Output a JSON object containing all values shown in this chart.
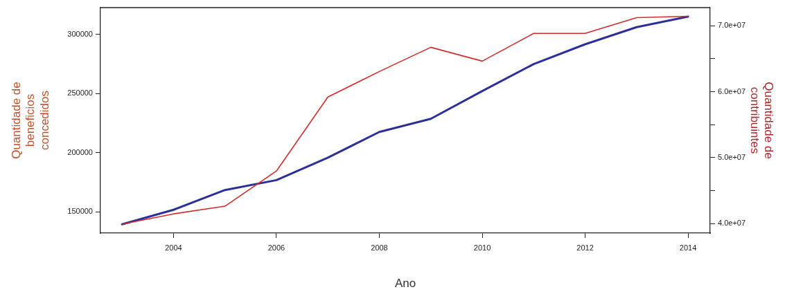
{
  "chart_data": {
    "type": "line",
    "xlabel": "Ano",
    "ylabel": "Quantidade de\nbeneficios\nconcedidos",
    "y2label": "Quantidade de\ncontribuintes",
    "x": [
      2003,
      2004,
      2005,
      2006,
      2007,
      2008,
      2009,
      2010,
      2011,
      2012,
      2013,
      2014
    ],
    "series": [
      {
        "color": "#d42a2a",
        "values": [
          139500,
          148200,
          154700,
          184500,
          247100,
          268700,
          289200,
          277500,
          301000,
          301000,
          314300,
          315500
        ]
      },
      {
        "color": "#2b2f9a",
        "axis": "y2",
        "values": [
          39900000,
          42100000,
          45100000,
          46600000,
          50000000,
          53900000,
          55900000,
          60100000,
          64200000,
          67200000,
          69800000,
          71400000
        ]
      }
    ],
    "xlim": [
      2002.58,
      2014.43
    ],
    "xticks": [
      2004,
      2006,
      2008,
      2010,
      2012,
      2014
    ],
    "ylim": [
      131900,
      322800
    ],
    "yticks": [
      150000,
      200000,
      250000,
      300000
    ],
    "y2lim": [
      38560000,
      72760000
    ],
    "y2ticks": [
      {
        "value": 40000000,
        "label": "4.0e+07"
      },
      {
        "value": 45000000,
        "label": null
      },
      {
        "value": 50000000,
        "label": "5.0e+07"
      },
      {
        "value": 55000000,
        "label": null
      },
      {
        "value": 60000000,
        "label": "6.0e+07"
      },
      {
        "value": 65000000,
        "label": null
      },
      {
        "value": 70000000,
        "label": "7.0e+07"
      }
    ],
    "grid": false,
    "legend": false,
    "marker": "none",
    "line_style": "solid"
  }
}
